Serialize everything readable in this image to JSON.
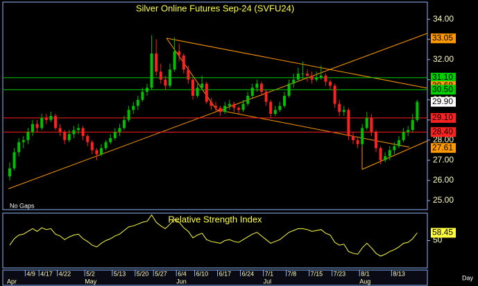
{
  "chart_data": {
    "type": "candlestick",
    "title": "Silver Online Futures Sep-24 (SVFU24)",
    "note": "No Gaps",
    "x_axis_unit": "Day",
    "up_color": "#00c000",
    "down_color": "#ff2020",
    "ylim": [
      24.55,
      34.85
    ],
    "yticks": [
      {
        "value": 34,
        "label": "34.00"
      },
      {
        "value": 33,
        "label": "33.00"
      },
      {
        "value": 32,
        "label": "32.00"
      },
      {
        "value": 31,
        "label": "31.00"
      },
      {
        "value": 30,
        "label": "30.00"
      },
      {
        "value": 29,
        "label": "29.00"
      },
      {
        "value": 28,
        "label": "28.00"
      },
      {
        "value": 27,
        "label": "27.00"
      },
      {
        "value": 26,
        "label": "26.00"
      },
      {
        "value": 25,
        "label": "25.00"
      }
    ],
    "levels": [
      {
        "value": 33.05,
        "label": "33.05",
        "color": "#ff9900",
        "line": false
      },
      {
        "value": 31.1,
        "label": "31.10",
        "color": "#00d000",
        "line": true
      },
      {
        "value": 30.68,
        "label": "30.68",
        "color": "#ff9900",
        "line": false
      },
      {
        "value": 30.5,
        "label": "30.50",
        "color": "#00d000",
        "line": true
      },
      {
        "value": 29.9,
        "label": "29.90",
        "color": "#ffffff",
        "line": false
      },
      {
        "value": 29.1,
        "label": "29.10",
        "color": "#ff2020",
        "line": true
      },
      {
        "value": 28.4,
        "label": "28.40",
        "color": "#ff2020",
        "line": true
      },
      {
        "value": 27.61,
        "label": "27.61",
        "color": "#ff9900",
        "line": false
      }
    ],
    "categories": [
      null,
      null,
      null,
      null,
      "4/9",
      null,
      null,
      "4/17",
      null,
      null,
      null,
      "4/22",
      null,
      null,
      null,
      null,
      null,
      "5/2",
      null,
      null,
      null,
      null,
      null,
      "5/13",
      null,
      null,
      null,
      null,
      "5/20",
      null,
      null,
      null,
      "5/27",
      null,
      null,
      null,
      null,
      "6/4",
      null,
      null,
      null,
      "6/10",
      null,
      null,
      null,
      null,
      "6/17",
      null,
      null,
      null,
      null,
      "6/24",
      null,
      null,
      null,
      null,
      "7/1",
      null,
      null,
      null,
      null,
      "7/8",
      null,
      null,
      null,
      null,
      "7/15",
      null,
      null,
      null,
      null,
      "7/23",
      null,
      null,
      null,
      null,
      null,
      "8/1",
      null,
      null,
      null,
      null,
      null,
      null,
      "8/13",
      null,
      null,
      null,
      null,
      null
    ],
    "months": [
      "Apr",
      null,
      null,
      null,
      null,
      null,
      null,
      null,
      null,
      null,
      null,
      null,
      null,
      null,
      null,
      null,
      null,
      "May",
      null,
      null,
      null,
      null,
      null,
      null,
      null,
      null,
      null,
      null,
      null,
      null,
      null,
      null,
      null,
      null,
      null,
      null,
      null,
      "Jun",
      null,
      null,
      null,
      null,
      null,
      null,
      null,
      null,
      null,
      null,
      null,
      null,
      null,
      null,
      null,
      null,
      null,
      null,
      "Jul",
      null,
      null,
      null,
      null,
      null,
      null,
      null,
      null,
      null,
      null,
      null,
      null,
      null,
      null,
      null,
      null,
      null,
      null,
      null,
      null,
      "Aug",
      null,
      null,
      null,
      null,
      null,
      null,
      null,
      null,
      null,
      null,
      null,
      null
    ],
    "candles": [
      [
        26.2,
        26.9,
        26.0,
        26.6
      ],
      [
        26.6,
        27.6,
        26.5,
        27.4
      ],
      [
        27.4,
        28.1,
        27.2,
        27.9
      ],
      [
        27.9,
        28.2,
        27.6,
        28.0
      ],
      [
        28.0,
        28.6,
        27.8,
        28.4
      ],
      [
        28.4,
        29.0,
        28.2,
        28.8
      ],
      [
        28.8,
        29.0,
        28.4,
        28.6
      ],
      [
        28.6,
        29.3,
        28.5,
        29.1
      ],
      [
        29.1,
        29.3,
        28.8,
        29.0
      ],
      [
        29.0,
        29.4,
        28.9,
        29.2
      ],
      [
        29.2,
        29.3,
        28.5,
        28.6
      ],
      [
        28.6,
        28.8,
        28.2,
        28.4
      ],
      [
        28.4,
        28.5,
        27.8,
        28.0
      ],
      [
        28.0,
        28.5,
        27.9,
        28.3
      ],
      [
        28.3,
        28.7,
        28.1,
        28.5
      ],
      [
        28.5,
        28.8,
        28.3,
        28.6
      ],
      [
        28.6,
        28.7,
        28.0,
        28.2
      ],
      [
        28.2,
        28.3,
        27.7,
        27.9
      ],
      [
        27.9,
        28.0,
        27.3,
        27.5
      ],
      [
        27.5,
        27.6,
        27.0,
        27.3
      ],
      [
        27.3,
        27.8,
        27.2,
        27.6
      ],
      [
        27.6,
        28.0,
        27.5,
        27.9
      ],
      [
        27.9,
        28.3,
        27.8,
        28.1
      ],
      [
        28.1,
        28.6,
        28.0,
        28.4
      ],
      [
        28.4,
        28.8,
        28.2,
        28.6
      ],
      [
        28.6,
        29.2,
        28.5,
        29.0
      ],
      [
        29.0,
        29.7,
        28.9,
        29.5
      ],
      [
        29.5,
        29.9,
        29.3,
        29.7
      ],
      [
        29.7,
        30.2,
        29.5,
        30.0
      ],
      [
        30.0,
        30.6,
        29.9,
        30.4
      ],
      [
        30.4,
        30.8,
        30.2,
        30.6
      ],
      [
        30.6,
        33.2,
        30.5,
        32.3
      ],
      [
        32.3,
        33.0,
        31.2,
        31.4
      ],
      [
        31.4,
        31.8,
        30.8,
        31.0
      ],
      [
        31.0,
        31.2,
        30.5,
        30.7
      ],
      [
        30.7,
        31.8,
        30.6,
        31.5
      ],
      [
        31.5,
        33.1,
        31.4,
        32.4
      ],
      [
        32.4,
        32.8,
        31.9,
        32.2
      ],
      [
        32.2,
        32.3,
        31.3,
        31.5
      ],
      [
        31.5,
        31.7,
        30.8,
        31.0
      ],
      [
        31.0,
        31.1,
        30.0,
        30.2
      ],
      [
        30.2,
        30.8,
        30.1,
        30.6
      ],
      [
        30.6,
        31.2,
        30.5,
        30.8
      ],
      [
        30.8,
        30.9,
        29.8,
        29.9
      ],
      [
        29.9,
        30.1,
        29.5,
        29.7
      ],
      [
        29.7,
        29.9,
        29.4,
        29.6
      ],
      [
        29.6,
        29.7,
        29.2,
        29.4
      ],
      [
        29.4,
        29.9,
        29.3,
        29.7
      ],
      [
        29.7,
        30.0,
        29.5,
        29.8
      ],
      [
        29.8,
        29.9,
        29.4,
        29.6
      ],
      [
        29.6,
        29.7,
        29.3,
        29.5
      ],
      [
        29.5,
        30.0,
        29.4,
        29.8
      ],
      [
        29.8,
        30.4,
        29.7,
        30.2
      ],
      [
        30.2,
        30.8,
        30.1,
        30.6
      ],
      [
        30.6,
        31.0,
        30.4,
        30.8
      ],
      [
        30.8,
        30.9,
        30.2,
        30.4
      ],
      [
        30.4,
        30.5,
        29.7,
        29.9
      ],
      [
        29.9,
        30.0,
        29.1,
        29.3
      ],
      [
        29.3,
        29.7,
        29.2,
        29.5
      ],
      [
        29.5,
        29.9,
        29.4,
        29.7
      ],
      [
        29.7,
        30.4,
        29.6,
        30.2
      ],
      [
        30.2,
        31.0,
        30.1,
        30.8
      ],
      [
        30.8,
        31.3,
        30.6,
        31.0
      ],
      [
        31.0,
        31.6,
        30.9,
        31.3
      ],
      [
        31.3,
        31.9,
        31.0,
        31.3
      ],
      [
        31.3,
        31.5,
        30.9,
        31.2
      ],
      [
        31.2,
        31.4,
        30.8,
        31.0
      ],
      [
        31.0,
        31.4,
        30.9,
        31.1
      ],
      [
        31.1,
        31.7,
        31.0,
        31.2
      ],
      [
        31.2,
        31.3,
        30.7,
        30.9
      ],
      [
        30.9,
        31.0,
        30.5,
        30.7
      ],
      [
        30.7,
        30.8,
        29.6,
        29.8
      ],
      [
        29.8,
        30.0,
        29.2,
        29.4
      ],
      [
        29.4,
        29.7,
        29.2,
        29.5
      ],
      [
        29.5,
        29.6,
        28.0,
        28.2
      ],
      [
        28.2,
        28.4,
        27.8,
        28.0
      ],
      [
        28.0,
        28.1,
        27.6,
        27.8
      ],
      [
        27.8,
        28.8,
        27.7,
        28.6
      ],
      [
        28.6,
        29.4,
        28.5,
        29.1
      ],
      [
        29.1,
        29.3,
        28.2,
        28.4
      ],
      [
        28.4,
        28.5,
        27.4,
        27.6
      ],
      [
        27.6,
        27.7,
        26.8,
        27.0
      ],
      [
        27.0,
        27.4,
        26.9,
        27.2
      ],
      [
        27.2,
        27.7,
        27.0,
        27.5
      ],
      [
        27.5,
        27.9,
        27.3,
        27.7
      ],
      [
        27.7,
        28.2,
        27.6,
        28.0
      ],
      [
        28.0,
        28.6,
        27.9,
        28.4
      ],
      [
        28.4,
        28.7,
        28.2,
        28.5
      ],
      [
        28.5,
        29.3,
        28.4,
        29.0
      ],
      [
        29.0,
        30.0,
        28.9,
        29.9
      ]
    ],
    "rsi": {
      "title": "Relative Strength Index",
      "color": "#ffff40",
      "ylim": [
        20,
        80
      ],
      "yticks": [
        50
      ],
      "values": [
        45,
        52,
        56,
        57,
        60,
        63,
        60,
        64,
        62,
        63,
        57,
        55,
        51,
        54,
        56,
        57,
        52,
        49,
        45,
        43,
        47,
        50,
        52,
        55,
        57,
        61,
        65,
        66,
        68,
        70,
        71,
        78,
        70,
        66,
        63,
        68,
        73,
        70,
        64,
        60,
        53,
        56,
        58,
        51,
        49,
        48,
        47,
        50,
        51,
        49,
        48,
        51,
        54,
        57,
        59,
        55,
        51,
        47,
        49,
        51,
        55,
        59,
        61,
        63,
        63,
        62,
        60,
        61,
        62,
        58,
        56,
        48,
        45,
        46,
        38,
        36,
        35,
        42,
        47,
        42,
        36,
        33,
        35,
        38,
        40,
        43,
        47,
        48,
        52,
        58.45
      ]
    }
  }
}
